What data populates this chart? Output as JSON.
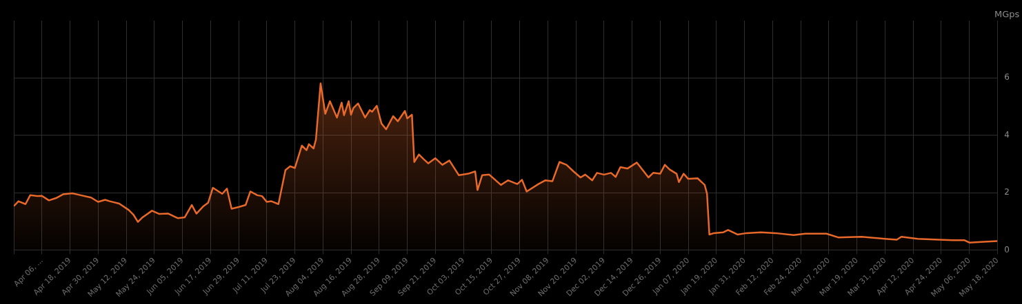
{
  "chart_data": {
    "type": "area",
    "ylabel": "MGps",
    "grid": true,
    "legend": false,
    "xlim": [
      "2019-03-25",
      "2020-05-18"
    ],
    "ylim": [
      0,
      8
    ],
    "yticks": [
      0,
      2,
      4,
      6
    ],
    "xticks": [
      {
        "value": "2019-03-25",
        "label": null
      },
      {
        "value": "2019-04-06",
        "label": "Apr 06, ..."
      },
      {
        "value": "2019-04-18",
        "label": "Apr 18, 2019"
      },
      {
        "value": "2019-04-30",
        "label": "Apr 30, 2019"
      },
      {
        "value": "2019-05-12",
        "label": "May 12, 2019"
      },
      {
        "value": "2019-05-24",
        "label": "May 24, 2019"
      },
      {
        "value": "2019-06-05",
        "label": "Jun 05, 2019"
      },
      {
        "value": "2019-06-17",
        "label": "Jun 17, 2019"
      },
      {
        "value": "2019-06-29",
        "label": "Jun 29, 2019"
      },
      {
        "value": "2019-07-11",
        "label": "Jul 11, 2019"
      },
      {
        "value": "2019-07-23",
        "label": "Jul 23, 2019"
      },
      {
        "value": "2019-08-04",
        "label": "Aug 04, 2019"
      },
      {
        "value": "2019-08-16",
        "label": "Aug 16, 2019"
      },
      {
        "value": "2019-08-28",
        "label": "Aug 28, 2019"
      },
      {
        "value": "2019-09-09",
        "label": "Sep 09, 2019"
      },
      {
        "value": "2019-09-21",
        "label": "Sep 21, 2019"
      },
      {
        "value": "2019-10-03",
        "label": "Oct 03, 2019"
      },
      {
        "value": "2019-10-15",
        "label": "Oct 15, 2019"
      },
      {
        "value": "2019-10-27",
        "label": "Oct 27, 2019"
      },
      {
        "value": "2019-11-08",
        "label": "Nov 08, 2019"
      },
      {
        "value": "2019-11-20",
        "label": "Nov 20, 2019"
      },
      {
        "value": "2019-12-02",
        "label": "Dec 02, 2019"
      },
      {
        "value": "2019-12-14",
        "label": "Dec 14, 2019"
      },
      {
        "value": "2019-12-26",
        "label": "Dec 26, 2019"
      },
      {
        "value": "2020-01-07",
        "label": "Jan 07, 2020"
      },
      {
        "value": "2020-01-19",
        "label": "Jan 19, 2020"
      },
      {
        "value": "2020-01-31",
        "label": "Jan 31, 2020"
      },
      {
        "value": "2020-02-12",
        "label": "Feb 12, 2020"
      },
      {
        "value": "2020-02-24",
        "label": "Feb 24, 2020"
      },
      {
        "value": "2020-03-07",
        "label": "Mar 07, 2020"
      },
      {
        "value": "2020-03-19",
        "label": "Mar 19, 2020"
      },
      {
        "value": "2020-03-31",
        "label": "Mar 31, 2020"
      },
      {
        "value": "2020-04-12",
        "label": "Apr 12, 2020"
      },
      {
        "value": "2020-04-24",
        "label": "Apr 24, 2020"
      },
      {
        "value": "2020-05-06",
        "label": "May 06, 2020"
      },
      {
        "value": "2020-05-18",
        "label": "May 18, 2020"
      }
    ],
    "x": [
      "2019-03-25",
      "2019-03-27",
      "2019-03-30",
      "2019-04-01",
      "2019-04-04",
      "2019-04-06",
      "2019-04-09",
      "2019-04-12",
      "2019-04-15",
      "2019-04-19",
      "2019-04-21",
      "2019-04-27",
      "2019-04-30",
      "2019-05-03",
      "2019-05-05",
      "2019-05-09",
      "2019-05-13",
      "2019-05-15",
      "2019-05-17",
      "2019-05-19",
      "2019-05-23",
      "2019-05-26",
      "2019-05-30",
      "2019-06-03",
      "2019-06-06",
      "2019-06-09",
      "2019-06-11",
      "2019-06-14",
      "2019-06-16",
      "2019-06-18",
      "2019-06-22",
      "2019-06-24",
      "2019-06-26",
      "2019-06-29",
      "2019-07-02",
      "2019-07-04",
      "2019-07-07",
      "2019-07-09",
      "2019-07-11",
      "2019-07-13",
      "2019-07-16",
      "2019-07-19",
      "2019-07-21",
      "2019-07-23",
      "2019-07-26",
      "2019-07-28",
      "2019-07-29",
      "2019-07-31",
      "2019-08-01",
      "2019-08-03",
      "2019-08-05",
      "2019-08-07",
      "2019-08-10",
      "2019-08-12",
      "2019-08-13",
      "2019-08-15",
      "2019-08-16",
      "2019-08-17",
      "2019-08-19",
      "2019-08-22",
      "2019-08-24",
      "2019-08-25",
      "2019-08-27",
      "2019-08-29",
      "2019-08-31",
      "2019-09-03",
      "2019-09-05",
      "2019-09-08",
      "2019-09-09",
      "2019-09-11",
      "2019-09-12",
      "2019-09-14",
      "2019-09-16",
      "2019-09-18",
      "2019-09-21",
      "2019-09-24",
      "2019-09-27",
      "2019-10-01",
      "2019-10-05",
      "2019-10-08",
      "2019-10-09",
      "2019-10-11",
      "2019-10-14",
      "2019-10-19",
      "2019-10-22",
      "2019-10-26",
      "2019-10-28",
      "2019-10-30",
      "2019-11-04",
      "2019-11-07",
      "2019-11-10",
      "2019-11-13",
      "2019-11-16",
      "2019-11-19",
      "2019-11-22",
      "2019-11-24",
      "2019-11-27",
      "2019-11-29",
      "2019-12-02",
      "2019-12-05",
      "2019-12-07",
      "2019-12-09",
      "2019-12-12",
      "2019-12-16",
      "2019-12-19",
      "2019-12-21",
      "2019-12-23",
      "2019-12-26",
      "2019-12-28",
      "2019-12-30",
      "2020-01-02",
      "2020-01-03",
      "2020-01-05",
      "2020-01-07",
      "2020-01-11",
      "2020-01-14",
      "2020-01-15",
      "2020-01-16",
      "2020-01-18",
      "2020-01-22",
      "2020-01-24",
      "2020-01-28",
      "2020-02-01",
      "2020-02-07",
      "2020-02-13",
      "2020-02-21",
      "2020-02-26",
      "2020-03-06",
      "2020-03-11",
      "2020-03-21",
      "2020-03-31",
      "2020-04-05",
      "2020-04-07",
      "2020-04-14",
      "2020-04-23",
      "2020-04-29",
      "2020-05-04",
      "2020-05-06",
      "2020-05-11",
      "2020-05-18"
    ],
    "series": [
      {
        "color": "#e8692a",
        "values": [
          1.53,
          1.7,
          1.6,
          1.91,
          1.88,
          1.89,
          1.73,
          1.81,
          1.94,
          1.98,
          1.94,
          1.83,
          1.68,
          1.75,
          1.7,
          1.62,
          1.4,
          1.24,
          0.98,
          1.14,
          1.37,
          1.26,
          1.27,
          1.11,
          1.14,
          1.57,
          1.27,
          1.53,
          1.65,
          2.17,
          1.96,
          2.14,
          1.44,
          1.5,
          1.57,
          2.04,
          1.91,
          1.88,
          1.68,
          1.7,
          1.6,
          2.79,
          2.92,
          2.86,
          3.64,
          3.48,
          3.69,
          3.54,
          3.85,
          5.81,
          4.75,
          5.19,
          4.62,
          5.14,
          4.7,
          5.19,
          4.72,
          4.95,
          5.11,
          4.62,
          4.88,
          4.82,
          5.03,
          4.41,
          4.21,
          4.67,
          4.49,
          4.85,
          4.59,
          4.72,
          3.07,
          3.33,
          3.17,
          3.02,
          3.2,
          2.97,
          3.12,
          2.61,
          2.66,
          2.74,
          2.09,
          2.61,
          2.63,
          2.27,
          2.43,
          2.3,
          2.45,
          2.04,
          2.3,
          2.43,
          2.4,
          3.07,
          2.97,
          2.74,
          2.53,
          2.63,
          2.43,
          2.69,
          2.63,
          2.69,
          2.55,
          2.89,
          2.84,
          3.05,
          2.74,
          2.53,
          2.69,
          2.66,
          2.97,
          2.81,
          2.66,
          2.37,
          2.66,
          2.48,
          2.5,
          2.27,
          1.96,
          0.54,
          0.59,
          0.62,
          0.7,
          0.54,
          0.59,
          0.62,
          0.59,
          0.52,
          0.57,
          0.57,
          0.44,
          0.46,
          0.39,
          0.36,
          0.46,
          0.39,
          0.36,
          0.34,
          0.34,
          0.26,
          0.28,
          0.31
        ]
      }
    ]
  }
}
